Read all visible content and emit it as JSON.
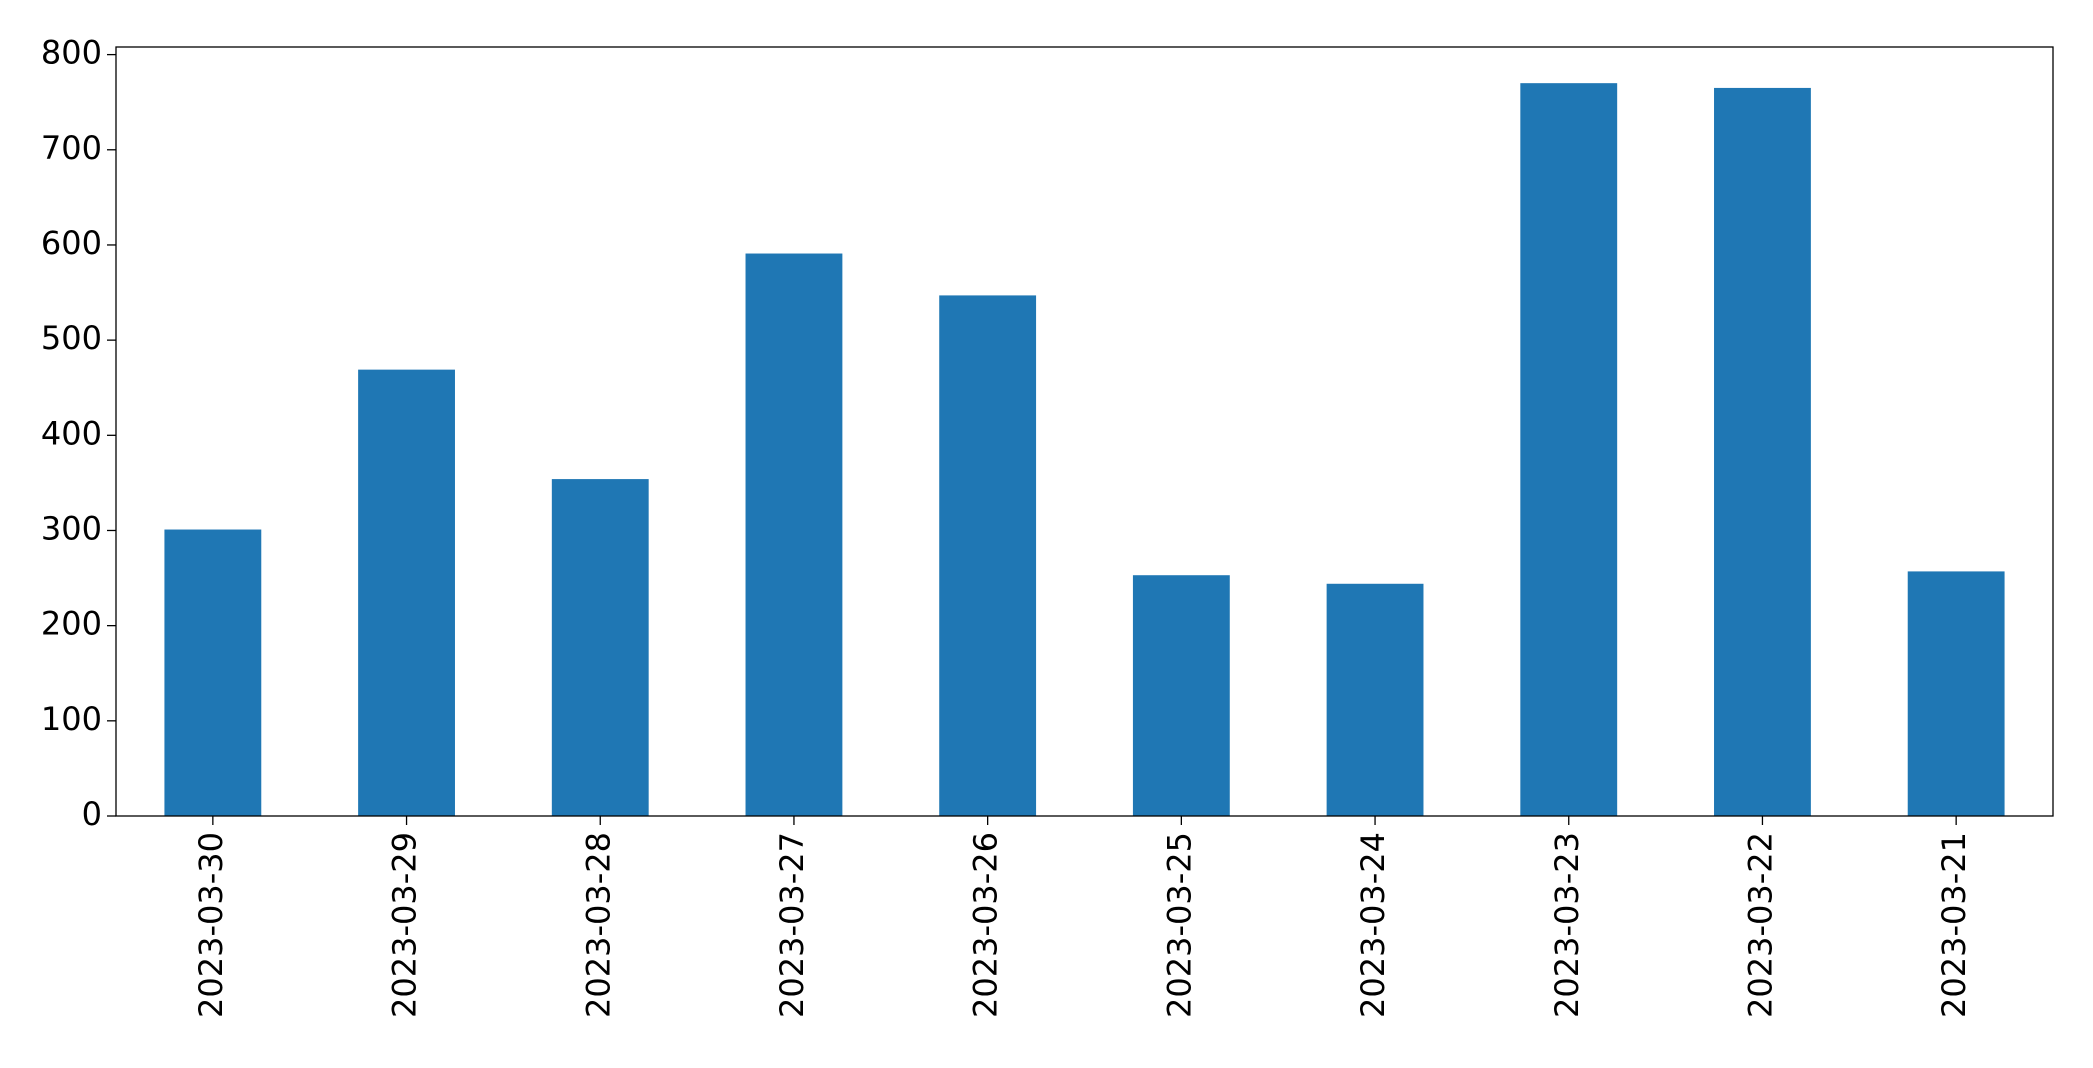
{
  "chart_data": {
    "type": "bar",
    "categories": [
      "2023-03-30",
      "2023-03-29",
      "2023-03-28",
      "2023-03-27",
      "2023-03-26",
      "2023-03-25",
      "2023-03-24",
      "2023-03-23",
      "2023-03-22",
      "2023-03-21"
    ],
    "values": [
      301,
      469,
      354,
      591,
      547,
      253,
      244,
      770,
      765,
      257
    ],
    "color": "#1f77b4",
    "ylim": [
      0,
      808
    ],
    "yticks": [
      0,
      100,
      200,
      300,
      400,
      500,
      600,
      700,
      800
    ],
    "grid": false
  }
}
